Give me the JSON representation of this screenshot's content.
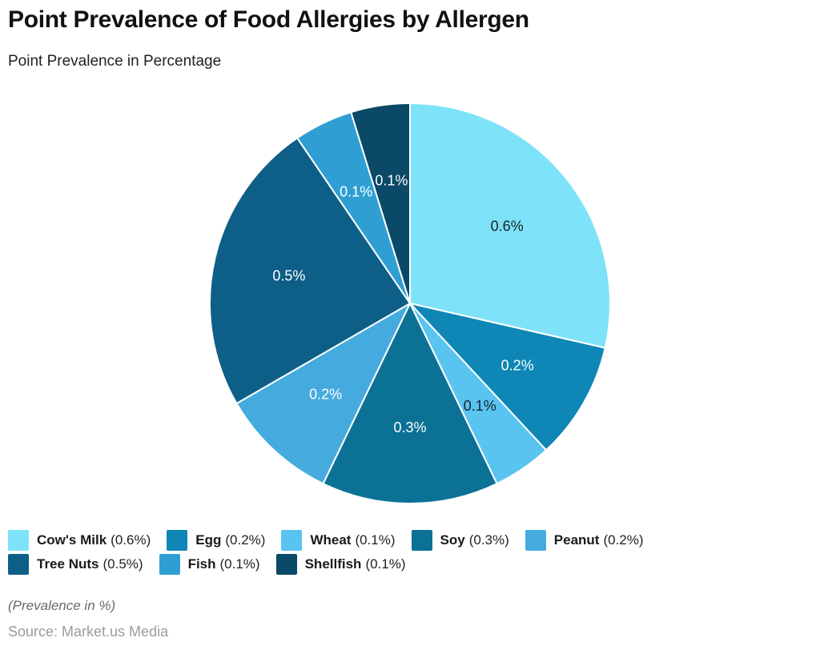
{
  "header": {
    "title": "Point Prevalence of Food Allergies by Allergen",
    "subtitle": "Point Prevalence in Percentage"
  },
  "chart_data": {
    "type": "pie",
    "title": "Point Prevalence of Food Allergies by Allergen",
    "subtitle": "Point Prevalence in Percentage",
    "value_unit": "%",
    "start_angle_deg": 0,
    "direction": "clockwise",
    "total": 2.1,
    "slices": [
      {
        "label": "Cow's Milk",
        "value": 0.6,
        "display": "0.6%",
        "color": "#7ee2f8",
        "label_color": "#16222c"
      },
      {
        "label": "Egg",
        "value": 0.2,
        "display": "0.2%",
        "color": "#0e87b6",
        "label_color": "#ffffff"
      },
      {
        "label": "Wheat",
        "value": 0.1,
        "display": "0.1%",
        "color": "#5ac4f1",
        "label_color": "#16222c"
      },
      {
        "label": "Soy",
        "value": 0.3,
        "display": "0.3%",
        "color": "#0c7295",
        "label_color": "#ffffff"
      },
      {
        "label": "Peanut",
        "value": 0.2,
        "display": "0.2%",
        "color": "#45abde",
        "label_color": "#ffffff"
      },
      {
        "label": "Tree Nuts",
        "value": 0.5,
        "display": "0.5%",
        "color": "#0d5f88",
        "label_color": "#ffffff"
      },
      {
        "label": "Fish",
        "value": 0.1,
        "display": "0.1%",
        "color": "#2f9fd3",
        "label_color": "#ffffff"
      },
      {
        "label": "Shellfish",
        "value": 0.1,
        "display": "0.1%",
        "color": "#0b4968",
        "label_color": "#ffffff"
      }
    ],
    "legend_position": "bottom"
  },
  "legend": {
    "items": [
      {
        "name": "Cow's Milk",
        "value_text": "(0.6%)",
        "color": "#7ee2f8"
      },
      {
        "name": "Egg",
        "value_text": "(0.2%)",
        "color": "#0e87b6"
      },
      {
        "name": "Wheat",
        "value_text": "(0.1%)",
        "color": "#5ac4f1"
      },
      {
        "name": "Soy",
        "value_text": "(0.3%)",
        "color": "#0c7295"
      },
      {
        "name": "Peanut",
        "value_text": "(0.2%)",
        "color": "#45abde"
      },
      {
        "name": "Tree Nuts",
        "value_text": "(0.5%)",
        "color": "#0d5f88"
      },
      {
        "name": "Fish",
        "value_text": "(0.1%)",
        "color": "#2f9fd3"
      },
      {
        "name": "Shellfish",
        "value_text": "(0.1%)",
        "color": "#0b4968"
      }
    ],
    "row_break_index": 5
  },
  "footer": {
    "note": "(Prevalence in %)",
    "source": "Source: Market.us Media"
  }
}
